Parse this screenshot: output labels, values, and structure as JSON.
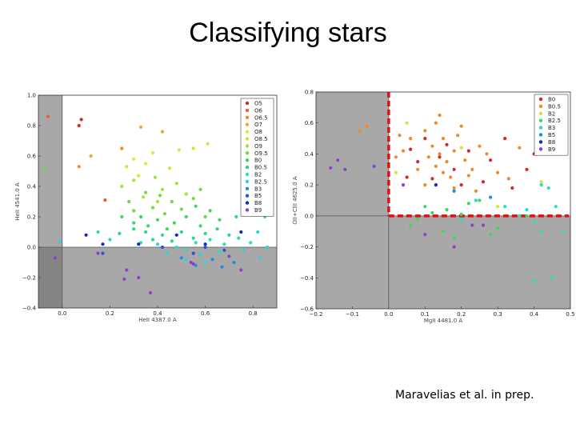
{
  "slide": {
    "title": "Classifying stars",
    "credit": "Maravelias et al. in prep."
  },
  "chart_data": [
    {
      "type": "scatter",
      "xlabel": "HeII 4387.0 A",
      "ylabel": "HeII 4541.0 A",
      "xlim": [
        -0.1,
        0.9
      ],
      "ylim": [
        -0.4,
        1.0
      ],
      "xticks": [
        "0.0",
        "0.2",
        "0.4",
        "0.6",
        "0.8"
      ],
      "yticks": [
        "−0.4",
        "−0.2",
        "0.0",
        "0.2",
        "0.4",
        "0.6",
        "0.8",
        "1.0"
      ],
      "xtick_values": [
        0.0,
        0.2,
        0.4,
        0.6,
        0.8
      ],
      "ytick_values": [
        -0.4,
        -0.2,
        0.0,
        0.2,
        0.4,
        0.6,
        0.8,
        1.0
      ],
      "shaded_regions": "x < 0 and y < 0",
      "legend_position": "top-right",
      "series": [
        {
          "name": "O5",
          "color": "#d62728",
          "points": [
            [
              0.08,
              0.84
            ],
            [
              0.07,
              0.8
            ]
          ]
        },
        {
          "name": "O6",
          "color": "#e8602c",
          "points": [
            [
              -0.06,
              0.86
            ],
            [
              0.18,
              0.31
            ]
          ]
        },
        {
          "name": "O6.5",
          "color": "#ee8a2c",
          "points": [
            [
              0.07,
              0.53
            ],
            [
              0.25,
              0.65
            ]
          ]
        },
        {
          "name": "O7",
          "color": "#f2a830",
          "points": [
            [
              0.12,
              0.6
            ],
            [
              0.33,
              0.79
            ],
            [
              0.42,
              0.76
            ]
          ]
        },
        {
          "name": "O8",
          "color": "#e8e33a",
          "points": [
            [
              0.3,
              0.58
            ],
            [
              0.38,
              0.62
            ],
            [
              0.49,
              0.64
            ],
            [
              0.35,
              0.55
            ]
          ]
        },
        {
          "name": "O8.5",
          "color": "#c8ea35",
          "points": [
            [
              0.55,
              0.65
            ],
            [
              0.61,
              0.68
            ],
            [
              0.27,
              0.53
            ],
            [
              0.45,
              0.52
            ],
            [
              0.32,
              0.47
            ]
          ]
        },
        {
          "name": "O9",
          "color": "#9fe43c",
          "points": [
            [
              0.3,
              0.44
            ],
            [
              0.39,
              0.46
            ],
            [
              0.48,
              0.42
            ],
            [
              0.42,
              0.38
            ],
            [
              0.34,
              0.33
            ],
            [
              0.52,
              0.35
            ],
            [
              0.4,
              0.3
            ],
            [
              0.25,
              0.4
            ]
          ]
        },
        {
          "name": "O9.5",
          "color": "#6bdc43",
          "points": [
            [
              0.35,
              0.36
            ],
            [
              0.41,
              0.34
            ],
            [
              0.46,
              0.3
            ],
            [
              0.55,
              0.32
            ],
            [
              0.58,
              0.38
            ],
            [
              0.38,
              0.26
            ],
            [
              0.43,
              0.22
            ],
            [
              0.3,
              0.24
            ],
            [
              0.5,
              0.25
            ],
            [
              0.28,
              0.3
            ],
            [
              -0.07,
              0.51
            ],
            [
              0.6,
              0.2
            ]
          ]
        },
        {
          "name": "B0",
          "color": "#3ed85a",
          "points": [
            [
              0.33,
              0.2
            ],
            [
              0.4,
              0.18
            ],
            [
              0.47,
              0.16
            ],
            [
              0.52,
              0.2
            ],
            [
              0.56,
              0.27
            ],
            [
              0.62,
              0.24
            ],
            [
              0.36,
              0.14
            ],
            [
              0.44,
              0.12
            ],
            [
              0.3,
              0.16
            ],
            [
              0.58,
              0.14
            ],
            [
              0.25,
              0.2
            ],
            [
              0.66,
              0.18
            ]
          ]
        },
        {
          "name": "B0.5",
          "color": "#2bd88a",
          "points": [
            [
              0.35,
              0.1
            ],
            [
              0.42,
              0.08
            ],
            [
              0.5,
              0.1
            ],
            [
              0.55,
              0.06
            ],
            [
              0.6,
              0.09
            ],
            [
              0.65,
              0.12
            ],
            [
              0.7,
              0.08
            ],
            [
              0.3,
              0.12
            ],
            [
              0.38,
              0.05
            ],
            [
              0.46,
              0.04
            ],
            [
              0.24,
              0.09
            ],
            [
              0.73,
              0.2
            ]
          ]
        },
        {
          "name": "B2",
          "color": "#2bdcc0",
          "points": [
            [
              0.4,
              0.02
            ],
            [
              0.48,
              0.0
            ],
            [
              0.56,
              0.03
            ],
            [
              0.62,
              0.05
            ],
            [
              0.68,
              0.02
            ],
            [
              0.74,
              0.06
            ],
            [
              0.79,
              0.03
            ],
            [
              0.33,
              0.03
            ],
            [
              0.52,
              -0.02
            ],
            [
              0.66,
              -0.03
            ],
            [
              0.2,
              0.05
            ],
            [
              0.15,
              0.1
            ],
            [
              0.82,
              0.1
            ],
            [
              0.85,
              0.2
            ]
          ]
        },
        {
          "name": "B2.5",
          "color": "#2fd0e0",
          "points": [
            [
              0.44,
              -0.04
            ],
            [
              0.58,
              -0.05
            ],
            [
              0.7,
              -0.06
            ],
            [
              0.76,
              -0.02
            ],
            [
              0.6,
              -0.1
            ],
            [
              0.83,
              -0.07
            ],
            [
              0.52,
              -0.08
            ],
            [
              -0.01,
              0.04
            ],
            [
              0.86,
              0.0
            ]
          ]
        },
        {
          "name": "B3",
          "color": "#1f8ee0",
          "points": [
            [
              0.5,
              -0.07
            ],
            [
              0.63,
              -0.08
            ],
            [
              0.72,
              -0.1
            ],
            [
              0.56,
              -0.12
            ],
            [
              0.67,
              -0.13
            ]
          ]
        },
        {
          "name": "B5",
          "color": "#2855d8",
          "points": [
            [
              0.42,
              0.0
            ],
            [
              0.55,
              -0.04
            ],
            [
              0.6,
              0.0
            ],
            [
              0.68,
              -0.02
            ],
            [
              0.17,
              -0.04
            ]
          ]
        },
        {
          "name": "B8",
          "color": "#1a28b8",
          "points": [
            [
              0.1,
              0.08
            ],
            [
              0.17,
              0.02
            ],
            [
              0.32,
              0.02
            ],
            [
              0.6,
              0.02
            ],
            [
              0.48,
              0.08
            ],
            [
              0.75,
              0.1
            ]
          ]
        },
        {
          "name": "B9",
          "color": "#8a44c8",
          "points": [
            [
              0.27,
              -0.15
            ],
            [
              0.32,
              -0.2
            ],
            [
              0.26,
              -0.21
            ],
            [
              0.37,
              -0.3
            ],
            [
              0.55,
              -0.11
            ],
            [
              0.7,
              -0.06
            ],
            [
              0.75,
              -0.15
            ],
            [
              -0.03,
              -0.07
            ],
            [
              0.15,
              -0.04
            ],
            [
              0.54,
              -0.1
            ]
          ]
        }
      ]
    },
    {
      "type": "scatter",
      "xlabel": "MgII 4481.0 A",
      "ylabel": "OII+CIII 4625.0 A",
      "xlim": [
        -0.2,
        0.5
      ],
      "ylim": [
        -0.6,
        0.8
      ],
      "xticks": [
        "−0.2",
        "−0.1",
        "0.0",
        "0.1",
        "0.2",
        "0.3",
        "0.4",
        "0.5"
      ],
      "yticks": [
        "−0.6",
        "−0.4",
        "−0.2",
        "0.0",
        "0.2",
        "0.4",
        "0.6",
        "0.8"
      ],
      "xtick_values": [
        -0.2,
        -0.1,
        0.0,
        0.1,
        0.2,
        0.3,
        0.4,
        0.5
      ],
      "ytick_values": [
        -0.6,
        -0.4,
        -0.2,
        0.0,
        0.2,
        0.4,
        0.6,
        0.8
      ],
      "shaded_regions": "x < 0 or y < 0",
      "dashed_boundary": "red dashed lines along x = 0 and y = 0",
      "legend_position": "top-right",
      "series": [
        {
          "name": "B0",
          "color": "#d62728",
          "points": [
            [
              0.06,
              0.43
            ],
            [
              0.1,
              0.5
            ],
            [
              0.14,
              0.38
            ],
            [
              0.18,
              0.3
            ],
            [
              0.22,
              0.42
            ],
            [
              0.26,
              0.22
            ],
            [
              0.32,
              0.5
            ],
            [
              0.38,
              0.3
            ],
            [
              0.05,
              0.25
            ],
            [
              0.12,
              0.24
            ],
            [
              0.2,
              0.2
            ],
            [
              0.28,
              0.36
            ],
            [
              0.34,
              0.18
            ],
            [
              0.4,
              0.4
            ],
            [
              0.08,
              0.35
            ],
            [
              0.16,
              0.46
            ]
          ]
        },
        {
          "name": "B0.5",
          "color": "#ee8a2c",
          "points": [
            [
              0.1,
              0.55
            ],
            [
              0.13,
              0.6
            ],
            [
              0.15,
              0.5
            ],
            [
              0.12,
              0.45
            ],
            [
              0.14,
              0.4
            ],
            [
              0.16,
              0.35
            ],
            [
              0.18,
              0.42
            ],
            [
              0.11,
              0.38
            ],
            [
              0.13,
              0.32
            ],
            [
              0.15,
              0.28
            ],
            [
              0.19,
              0.52
            ],
            [
              0.21,
              0.36
            ],
            [
              0.23,
              0.3
            ],
            [
              0.25,
              0.45
            ],
            [
              0.08,
              0.3
            ],
            [
              0.06,
              0.5
            ],
            [
              0.04,
              0.42
            ],
            [
              0.02,
              0.38
            ],
            [
              0.17,
              0.25
            ],
            [
              0.22,
              0.26
            ],
            [
              0.27,
              0.4
            ],
            [
              0.3,
              0.28
            ],
            [
              0.33,
              0.24
            ],
            [
              0.36,
              0.44
            ],
            [
              0.03,
              0.52
            ],
            [
              0.1,
              0.2
            ],
            [
              0.18,
              0.18
            ],
            [
              0.24,
              0.16
            ],
            [
              0.2,
              0.58
            ],
            [
              0.14,
              0.65
            ],
            [
              -0.08,
              0.55
            ],
            [
              -0.06,
              0.58
            ],
            [
              0.45,
              0.45
            ]
          ]
        },
        {
          "name": "B2",
          "color": "#d8e03a",
          "points": [
            [
              0.05,
              0.6
            ],
            [
              0.2,
              0.44
            ],
            [
              0.42,
              0.22
            ],
            [
              0.3,
              0.06
            ],
            [
              0.02,
              0.28
            ]
          ]
        },
        {
          "name": "B2.5",
          "color": "#3ed85a",
          "points": [
            [
              0.1,
              0.06
            ],
            [
              0.16,
              0.04
            ],
            [
              0.22,
              0.08
            ],
            [
              0.12,
              0.02
            ],
            [
              0.2,
              0.01
            ],
            [
              0.08,
              -0.02
            ],
            [
              0.38,
              0.0
            ],
            [
              0.25,
              0.1
            ],
            [
              0.3,
              -0.08
            ],
            [
              0.15,
              -0.1
            ],
            [
              0.06,
              -0.06
            ],
            [
              0.28,
              -0.12
            ],
            [
              0.18,
              -0.14
            ]
          ]
        },
        {
          "name": "B3",
          "color": "#2bdcc0",
          "points": [
            [
              0.24,
              0.1
            ],
            [
              0.32,
              0.06
            ],
            [
              0.38,
              0.04
            ],
            [
              0.42,
              0.2
            ],
            [
              0.44,
              0.18
            ],
            [
              0.46,
              0.06
            ],
            [
              0.36,
              0.0
            ],
            [
              0.4,
              -0.04
            ],
            [
              0.48,
              -0.1
            ],
            [
              0.42,
              -0.1
            ],
            [
              0.45,
              -0.4
            ],
            [
              0.4,
              -0.42
            ],
            [
              0.2,
              -0.02
            ]
          ]
        },
        {
          "name": "B5",
          "color": "#1f8ee0",
          "points": [
            [
              0.18,
              0.16
            ],
            [
              0.28,
              0.12
            ]
          ]
        },
        {
          "name": "B8",
          "color": "#1a28b8",
          "points": [
            [
              0.13,
              0.2
            ]
          ]
        },
        {
          "name": "B9",
          "color": "#8a44c8",
          "points": [
            [
              -0.14,
              0.36
            ],
            [
              -0.12,
              0.3
            ],
            [
              -0.16,
              0.31
            ],
            [
              0.1,
              -0.12
            ],
            [
              0.18,
              -0.2
            ],
            [
              0.23,
              -0.06
            ],
            [
              0.26,
              -0.06
            ],
            [
              -0.04,
              0.32
            ],
            [
              0.04,
              0.2
            ]
          ]
        }
      ]
    }
  ]
}
